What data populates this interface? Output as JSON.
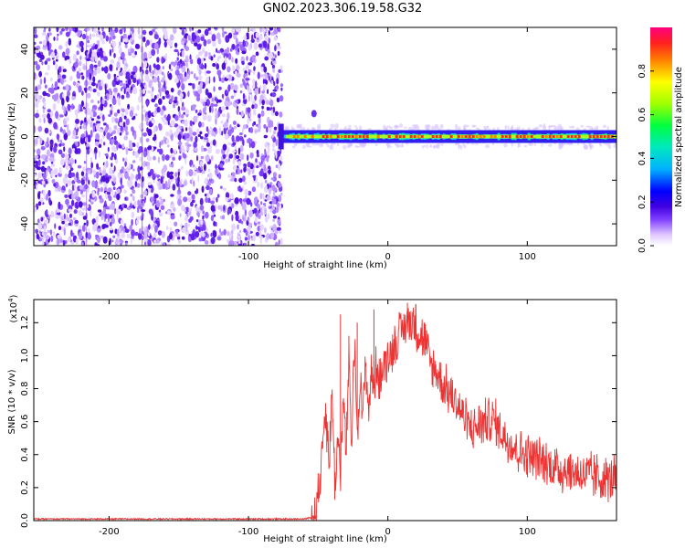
{
  "title": "GN02.2023.306.19.58.G32",
  "chart_data": [
    {
      "type": "heatmap",
      "xlabel": "Height of straight line (km)",
      "ylabel": "Frequency (Hz)",
      "xlim": [
        -254,
        164
      ],
      "ylim": [
        -50,
        50
      ],
      "xticks": [
        -200,
        -100,
        0,
        100
      ],
      "yticks": [
        -40,
        -20,
        0,
        20,
        40
      ],
      "colorbar": {
        "label": "Normalized spectral amplitude",
        "range": [
          0,
          1
        ],
        "ticks": [
          "0.0",
          "0.2",
          "0.4",
          "0.6",
          "0.8"
        ],
        "colors": [
          "#ffffff",
          "#e0c8ff",
          "#8040ff",
          "#4000e0",
          "#0000ff",
          "#00b0ff",
          "#00e8c0",
          "#00ff40",
          "#a0ff00",
          "#ffff00",
          "#ff8000",
          "#ff2020",
          "#ff0080"
        ]
      },
      "noise_region_x": [
        -254,
        -76
      ],
      "signal_line_x": [
        -76,
        164
      ],
      "signal_line_freq": 0
    },
    {
      "type": "line",
      "xlabel": "Height of straight line (km)",
      "ylabel": "SNR (10 * v/v)",
      "y_multiplier": "(x10",
      "y_multiplier_exp": "4",
      "y_multiplier_close": ")",
      "xlim": [
        -254,
        164
      ],
      "ylim": [
        0,
        1.34
      ],
      "xticks": [
        -200,
        -100,
        0,
        100
      ],
      "yticks": [
        "0.0",
        "0.2",
        "0.4",
        "0.6",
        "0.8",
        "1.0",
        "1.2"
      ],
      "series": [
        {
          "color": "#ee3333",
          "x": [
            -254,
            -200,
            -150,
            -100,
            -60,
            -55,
            -52,
            -48,
            -45,
            -42,
            -40,
            -38,
            -36,
            -34,
            -32,
            -30,
            -28,
            -26,
            -24,
            -22,
            -20,
            -18,
            -16,
            -14,
            -12,
            -10,
            -8,
            -6,
            -4,
            -2,
            0,
            2,
            4,
            6,
            8,
            10,
            12,
            14,
            16,
            18,
            20,
            22,
            24,
            26,
            28,
            30,
            35,
            40,
            45,
            50,
            55,
            60,
            65,
            70,
            75,
            80,
            85,
            90,
            95,
            100,
            110,
            120,
            130,
            140,
            150,
            160,
            164
          ],
          "values": [
            0.01,
            0.01,
            0.01,
            0.01,
            0.01,
            0.02,
            0.05,
            0.3,
            0.7,
            0.35,
            0.8,
            0.2,
            0.5,
            0.3,
            0.75,
            0.4,
            0.95,
            0.45,
            1.1,
            0.55,
            0.85,
            0.6,
            1.0,
            0.65,
            0.9,
            0.8,
            0.95,
            0.85,
            0.9,
            0.95,
            1.0,
            1.02,
            1.05,
            1.08,
            1.12,
            1.15,
            1.18,
            1.2,
            1.22,
            1.2,
            1.18,
            1.15,
            1.12,
            1.1,
            1.05,
            0.95,
            0.9,
            0.82,
            0.76,
            0.7,
            0.62,
            0.55,
            0.58,
            0.6,
            0.62,
            0.55,
            0.5,
            0.45,
            0.42,
            0.4,
            0.36,
            0.32,
            0.3,
            0.28,
            0.26,
            0.25,
            0.25
          ]
        }
      ]
    }
  ]
}
